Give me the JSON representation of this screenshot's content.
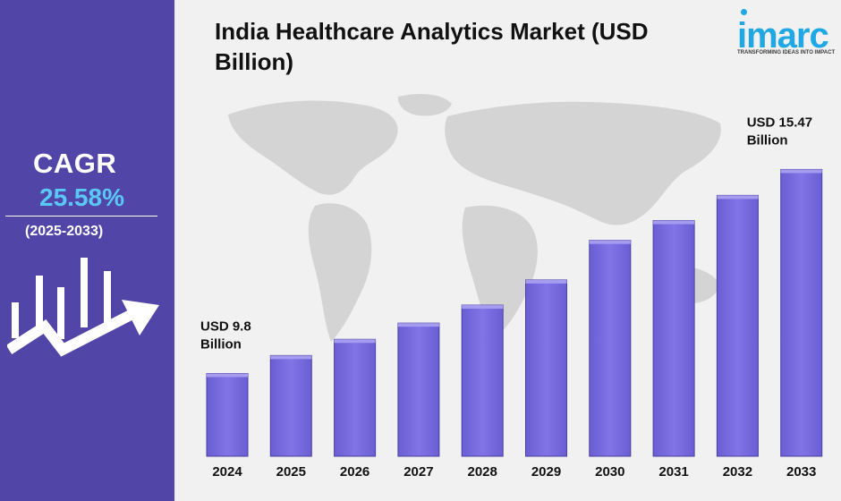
{
  "sidebar": {
    "cagr_label": "CAGR",
    "cagr_value": "25.58%",
    "cagr_period": "(2025-2033)"
  },
  "title": "India Healthcare Analytics Market (USD Billion)",
  "logo": {
    "word": "imarc",
    "tagline": "TRANSFORMING IDEAS INTO IMPACT"
  },
  "colors": {
    "sidebar": "#5145a8",
    "bar": "#7b6fe0",
    "cagr_value": "#59c8f5",
    "logo": "#1fa8e4",
    "background": "#f1f1f1"
  },
  "chart_data": {
    "type": "bar",
    "title": "India Healthcare Analytics Market (USD Billion)",
    "categories": [
      "2024",
      "2025",
      "2026",
      "2027",
      "2028",
      "2029",
      "2030",
      "2031",
      "2032",
      "2033"
    ],
    "values": [
      9.8,
      10.3,
      10.75,
      11.2,
      11.7,
      12.4,
      13.5,
      14.05,
      14.75,
      15.47
    ],
    "annotations": [
      {
        "category": "2024",
        "lines": [
          "USD 9.8",
          "Billion"
        ]
      },
      {
        "category": "2033",
        "lines": [
          "USD 15.47",
          "Billion"
        ]
      }
    ],
    "ylim": [
      7.5,
      16.5
    ],
    "grid": false,
    "legend": "none"
  }
}
